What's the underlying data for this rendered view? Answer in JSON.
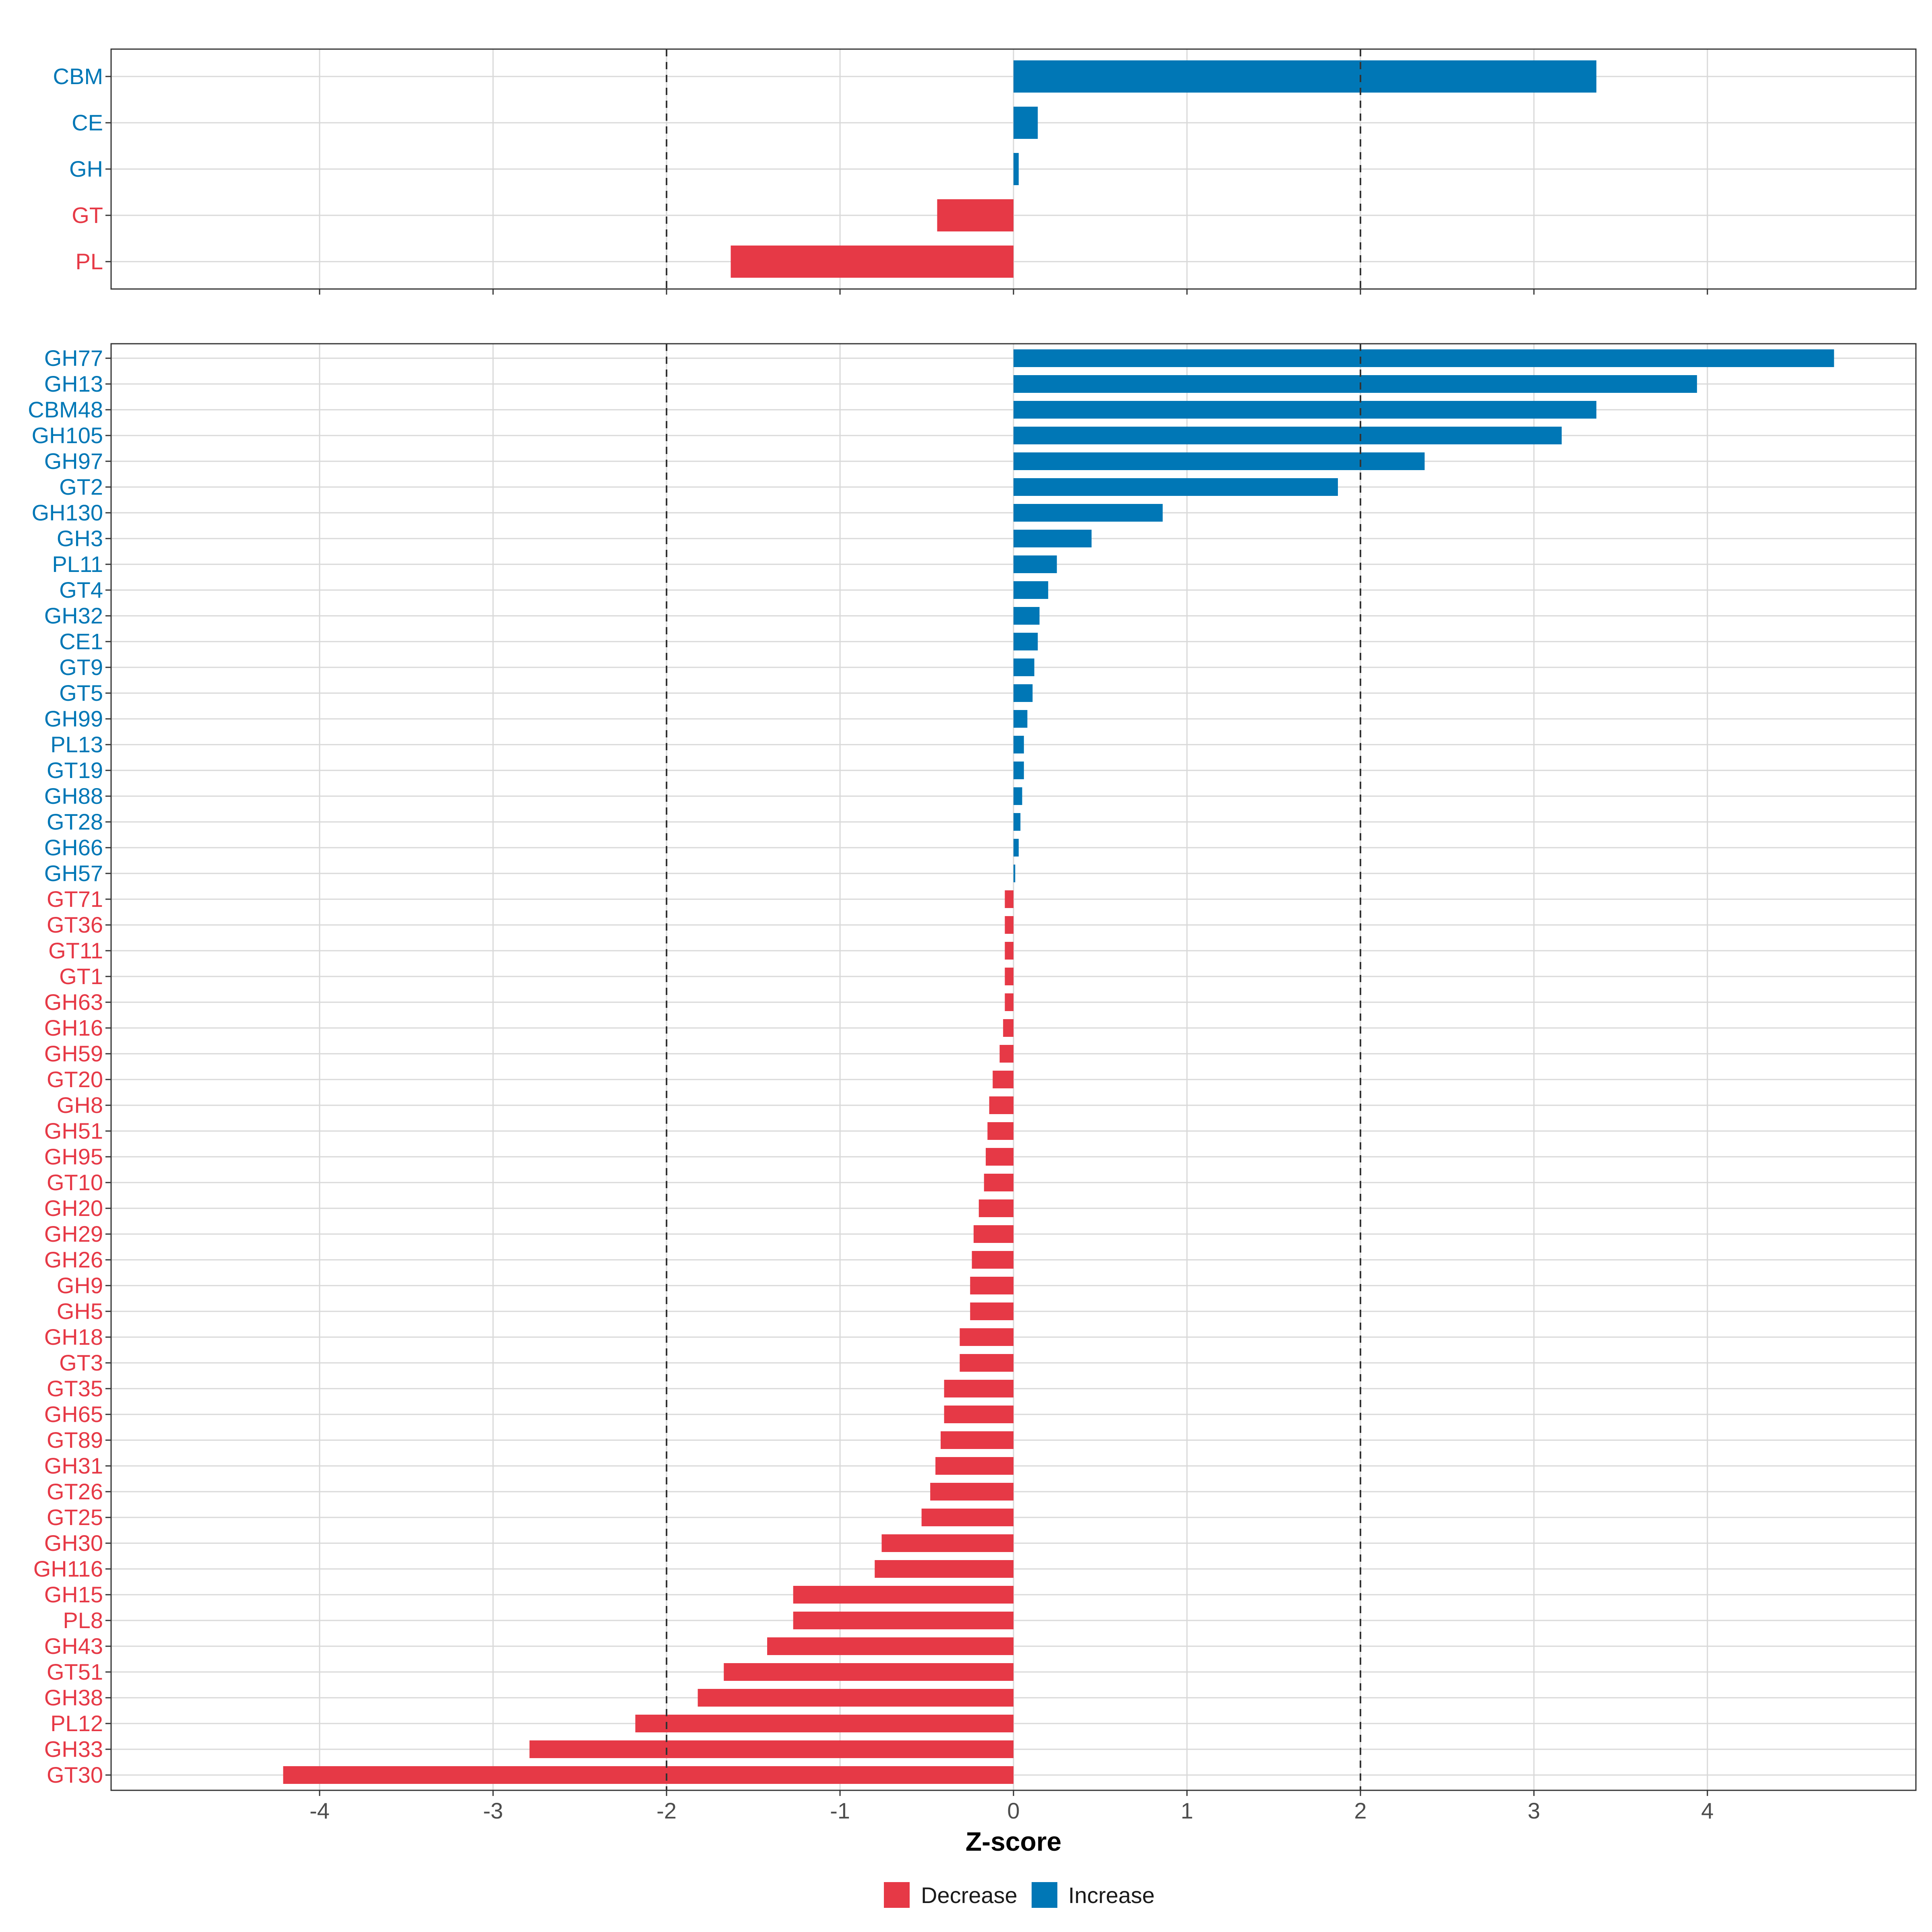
{
  "colors": {
    "decrease": "#E63946",
    "increase": "#0077B6",
    "grid": "#D9D9D9",
    "panel_border": "#333333",
    "reference_line": "#333333"
  },
  "chart_data": [
    {
      "type": "bar",
      "orientation": "horizontal",
      "panel": "top",
      "categories": [
        "CBM",
        "CE",
        "GH",
        "GT",
        "PL"
      ],
      "values": [
        3.36,
        0.14,
        0.03,
        -0.44,
        -1.63
      ],
      "xlim": [
        -5.2,
        5.2
      ],
      "reference_lines": [
        -2,
        2
      ]
    },
    {
      "type": "bar",
      "orientation": "horizontal",
      "panel": "bottom",
      "categories": [
        "GH77",
        "GH13",
        "CBM48",
        "GH105",
        "GH97",
        "GT2",
        "GH130",
        "GH3",
        "PL11",
        "GT4",
        "GH32",
        "CE1",
        "GT9",
        "GT5",
        "GH99",
        "PL13",
        "GT19",
        "GH88",
        "GT28",
        "GH66",
        "GH57",
        "GT71",
        "GT36",
        "GT11",
        "GT1",
        "GH63",
        "GH16",
        "GH59",
        "GT20",
        "GH8",
        "GH51",
        "GH95",
        "GT10",
        "GH20",
        "GH29",
        "GH26",
        "GH9",
        "GH5",
        "GH18",
        "GT3",
        "GT35",
        "GH65",
        "GT89",
        "GH31",
        "GT26",
        "GT25",
        "GH30",
        "GH116",
        "GH15",
        "PL8",
        "GH43",
        "GT51",
        "GH38",
        "PL12",
        "GH33",
        "GT30"
      ],
      "values": [
        4.73,
        3.94,
        3.36,
        3.16,
        2.37,
        1.87,
        0.86,
        0.45,
        0.25,
        0.2,
        0.15,
        0.14,
        0.12,
        0.11,
        0.08,
        0.06,
        0.06,
        0.05,
        0.04,
        0.03,
        0.01,
        -0.05,
        -0.05,
        -0.05,
        -0.05,
        -0.05,
        -0.06,
        -0.08,
        -0.12,
        -0.14,
        -0.15,
        -0.16,
        -0.17,
        -0.2,
        -0.23,
        -0.24,
        -0.25,
        -0.25,
        -0.31,
        -0.31,
        -0.4,
        -0.4,
        -0.42,
        -0.45,
        -0.48,
        -0.53,
        -0.76,
        -0.8,
        -1.27,
        -1.27,
        -1.42,
        -1.67,
        -1.82,
        -2.18,
        -2.79,
        -4.21
      ],
      "xlim": [
        -5.2,
        5.2
      ],
      "reference_lines": [
        -2,
        2
      ]
    }
  ],
  "x_axis": {
    "title": "Z-score",
    "ticks": [
      -4,
      -3,
      -2,
      -1,
      0,
      1,
      2,
      3,
      4
    ],
    "tick_labels": [
      "-4",
      "-3",
      "-2",
      "-1",
      "0",
      "1",
      "2",
      "3",
      "4"
    ]
  },
  "legend": {
    "position": "bottom",
    "items": [
      {
        "label": "Decrease",
        "color_key": "decrease"
      },
      {
        "label": "Increase",
        "color_key": "increase"
      }
    ]
  }
}
